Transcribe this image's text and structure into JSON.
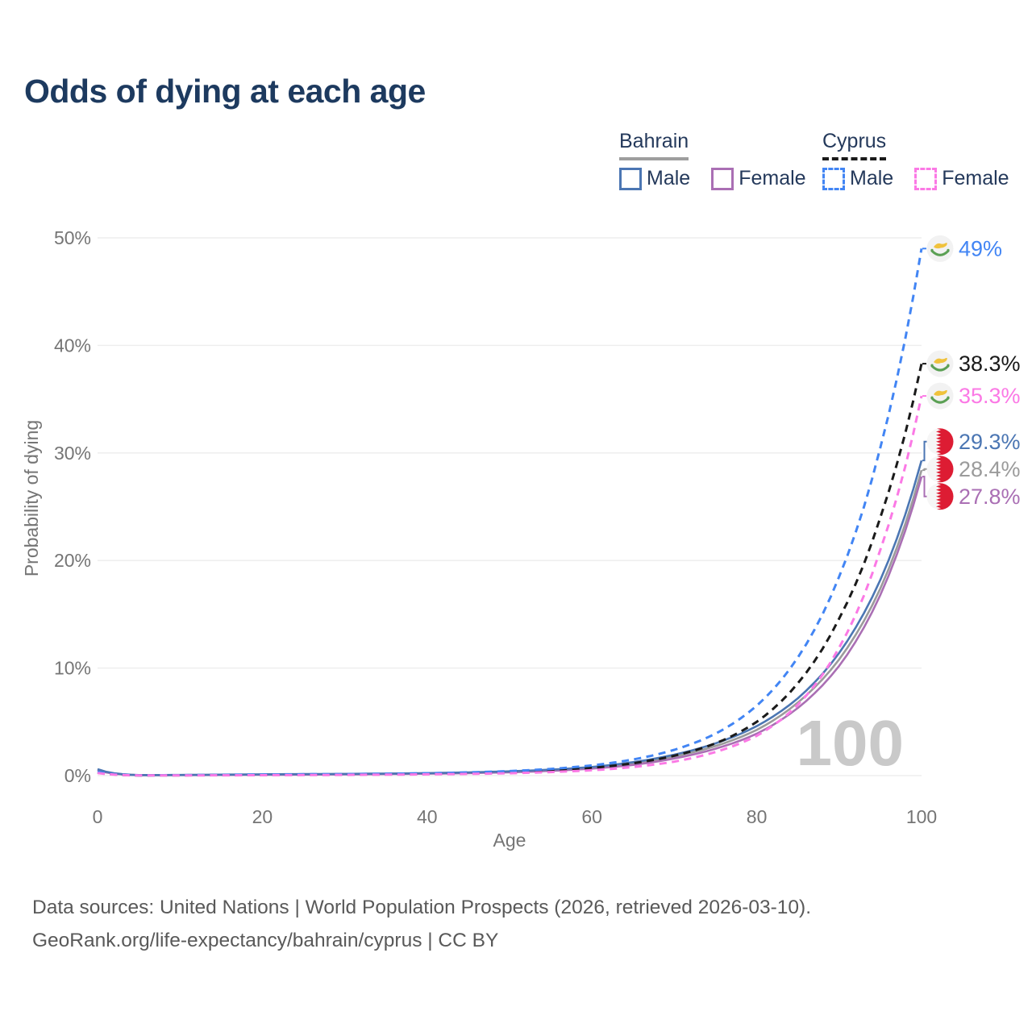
{
  "title": "Odds of dying at each age",
  "legend": {
    "groups": [
      {
        "label": "Bahrain",
        "line_style": "solid",
        "underline_color": "#9e9e9e",
        "items": [
          {
            "label": "Male",
            "color": "#4b76b3",
            "style": "solid"
          },
          {
            "label": "Female",
            "color": "#aa6fb4",
            "style": "solid"
          }
        ]
      },
      {
        "label": "Cyprus",
        "line_style": "dashed",
        "underline_color": "#1a1a1a",
        "items": [
          {
            "label": "Male",
            "color": "#4285f4",
            "style": "dashed"
          },
          {
            "label": "Female",
            "color": "#fb79e5",
            "style": "dashed"
          }
        ]
      }
    ]
  },
  "chart_data": {
    "type": "line",
    "title": "Odds of dying at each age",
    "xlabel": "Age",
    "ylabel": "Probability of dying",
    "xlim": [
      0,
      100
    ],
    "ylim": [
      0,
      50
    ],
    "x_ticks": [
      "0",
      "20",
      "40",
      "60",
      "80",
      "100"
    ],
    "y_ticks": [
      "0%",
      "10%",
      "20%",
      "30%",
      "40%",
      "50%"
    ],
    "grid": "horizontal",
    "watermark": "100",
    "ages": [
      0,
      5,
      10,
      15,
      20,
      25,
      30,
      35,
      40,
      45,
      50,
      55,
      60,
      65,
      70,
      75,
      80,
      85,
      90,
      95,
      100
    ],
    "series": [
      {
        "id": "bahrain-both",
        "name": "Bahrain — Both sexes",
        "country": "bahrain",
        "sex": "both",
        "color": "#9b9b9b",
        "dash": false,
        "end_label": "28.4%",
        "values": [
          0.55,
          0.045,
          0.05,
          0.08,
          0.1,
          0.12,
          0.14,
          0.17,
          0.21,
          0.27,
          0.36,
          0.5,
          0.73,
          1.12,
          1.78,
          2.75,
          4.25,
          6.8,
          10.8,
          17.4,
          28.4
        ]
      },
      {
        "id": "bahrain-female",
        "name": "Bahrain — Female",
        "country": "bahrain",
        "sex": "female",
        "color": "#aa6fb4",
        "dash": false,
        "end_label": "27.8%",
        "values": [
          0.5,
          0.04,
          0.05,
          0.06,
          0.08,
          0.09,
          0.11,
          0.14,
          0.18,
          0.23,
          0.31,
          0.44,
          0.65,
          1.0,
          1.6,
          2.5,
          3.9,
          6.3,
          10.2,
          16.8,
          27.8
        ]
      },
      {
        "id": "bahrain-male",
        "name": "Bahrain — Male",
        "country": "bahrain",
        "sex": "male",
        "color": "#4b76b3",
        "dash": false,
        "end_label": "29.3%",
        "values": [
          0.6,
          0.05,
          0.06,
          0.09,
          0.12,
          0.14,
          0.16,
          0.19,
          0.23,
          0.3,
          0.4,
          0.56,
          0.8,
          1.25,
          1.95,
          3.0,
          4.6,
          7.2,
          11.4,
          18.2,
          29.3
        ]
      },
      {
        "id": "cyprus-both",
        "name": "Cyprus — Both sexes",
        "country": "cyprus",
        "sex": "both",
        "color": "#1a1a1a",
        "dash": true,
        "end_label": "38.3%",
        "values": [
          0.3,
          0.025,
          0.03,
          0.05,
          0.07,
          0.09,
          0.11,
          0.13,
          0.17,
          0.23,
          0.32,
          0.47,
          0.72,
          1.15,
          1.85,
          3.0,
          5.0,
          8.6,
          14.6,
          24.0,
          38.3
        ]
      },
      {
        "id": "cyprus-male",
        "name": "Cyprus — Male",
        "country": "cyprus",
        "sex": "male",
        "color": "#4285f4",
        "dash": true,
        "end_label": "49%",
        "values": [
          0.35,
          0.03,
          0.04,
          0.07,
          0.1,
          0.12,
          0.14,
          0.17,
          0.22,
          0.3,
          0.42,
          0.62,
          0.95,
          1.5,
          2.4,
          3.9,
          6.5,
          11.0,
          18.5,
          30.5,
          49.0
        ]
      },
      {
        "id": "cyprus-female",
        "name": "Cyprus — Female",
        "country": "cyprus",
        "sex": "female",
        "color": "#fb79e5",
        "dash": true,
        "end_label": "35.3%",
        "values": [
          0.25,
          0.02,
          0.02,
          0.03,
          0.04,
          0.05,
          0.07,
          0.09,
          0.12,
          0.16,
          0.22,
          0.33,
          0.5,
          0.8,
          1.3,
          2.2,
          3.7,
          6.6,
          11.9,
          21.0,
          35.3
        ]
      }
    ]
  },
  "footer": {
    "line1": "Data sources: United Nations | World Population Prospects (2026, retrieved 2026-03-10).",
    "line2": "GeoRank.org/life-expectancy/bahrain/cyprus | CC BY"
  }
}
